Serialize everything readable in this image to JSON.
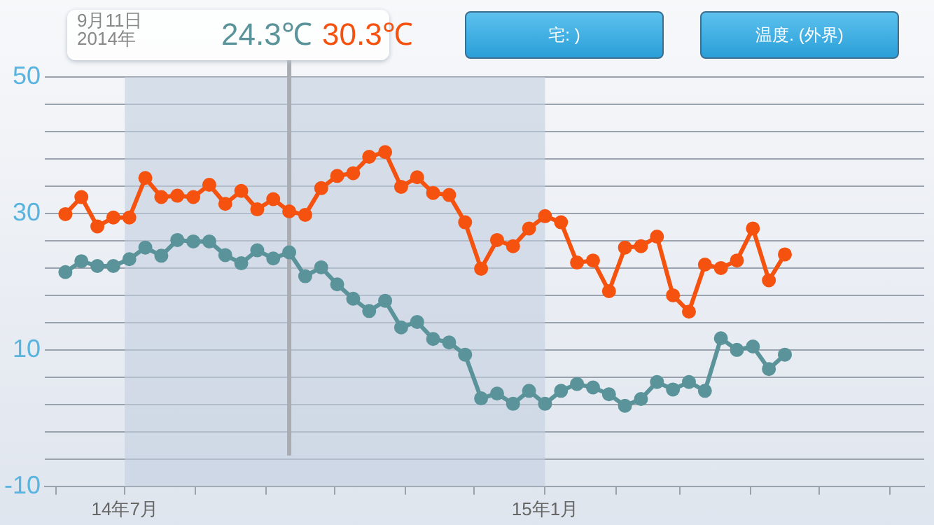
{
  "chart_data": {
    "type": "line",
    "x": [
      "2014-06-05",
      "2014-06-12",
      "2014-06-19",
      "2014-06-26",
      "2014-07-03",
      "2014-07-10",
      "2014-07-17",
      "2014-07-24",
      "2014-07-31",
      "2014-08-07",
      "2014-08-14",
      "2014-08-21",
      "2014-08-28",
      "2014-09-04",
      "2014-09-11",
      "2014-09-18",
      "2014-09-25",
      "2014-10-02",
      "2014-10-09",
      "2014-10-16",
      "2014-10-23",
      "2014-10-30",
      "2014-11-06",
      "2014-11-13",
      "2014-11-20",
      "2014-11-27",
      "2014-12-04",
      "2014-12-11",
      "2014-12-18",
      "2014-12-25",
      "2015-01-01",
      "2015-01-08",
      "2015-01-15",
      "2015-01-22",
      "2015-01-29",
      "2015-02-05",
      "2015-02-12",
      "2015-02-19",
      "2015-02-26",
      "2015-03-05",
      "2015-03-12",
      "2015-03-19",
      "2015-03-26",
      "2015-04-02",
      "2015-04-09",
      "2015-04-16"
    ],
    "series": [
      {
        "color": "#5a9399",
        "values": [
          21.4,
          23.0,
          22.3,
          22.3,
          23.3,
          25.0,
          23.8,
          26.1,
          25.9,
          25.9,
          23.9,
          22.7,
          24.6,
          23.4,
          24.3,
          20.8,
          22.1,
          19.6,
          17.5,
          15.7,
          17.2,
          13.3,
          14.1,
          11.6,
          11.1,
          9.3,
          2.9,
          3.6,
          2.1,
          4.0,
          2.1,
          4.0,
          5.0,
          4.5,
          3.5,
          1.8,
          2.8,
          5.3,
          4.2,
          5.3,
          4.0,
          11.7,
          10.0,
          10.5,
          7.2,
          9.3
        ]
      },
      {
        "color": "#f5520f",
        "values": [
          29.9,
          32.4,
          28.1,
          29.4,
          29.4,
          35.2,
          32.4,
          32.6,
          32.4,
          34.2,
          31.4,
          33.3,
          30.6,
          32.1,
          30.3,
          29.8,
          33.7,
          35.5,
          35.9,
          38.3,
          39.0,
          33.9,
          35.3,
          33.0,
          32.7,
          28.7,
          21.9,
          26.1,
          25.2,
          27.8,
          29.6,
          28.7,
          22.8,
          23.1,
          18.6,
          25.0,
          25.2,
          26.6,
          18.0,
          15.6,
          22.5,
          22.0,
          23.1,
          27.8,
          20.2,
          24.0
        ]
      }
    ],
    "xlim": [
      "2014-05-27",
      "2015-06-16"
    ],
    "xticks": [
      {
        "value": "2014-06-01",
        "label": null
      },
      {
        "value": "2014-07-01",
        "label": "14年7月"
      },
      {
        "value": "2014-08-01",
        "label": null
      },
      {
        "value": "2014-09-01",
        "label": null
      },
      {
        "value": "2014-10-01",
        "label": null
      },
      {
        "value": "2014-11-01",
        "label": null
      },
      {
        "value": "2014-12-01",
        "label": null
      },
      {
        "value": "2015-01-01",
        "label": "15年1月"
      },
      {
        "value": "2015-02-01",
        "label": null
      },
      {
        "value": "2015-03-01",
        "label": null
      },
      {
        "value": "2015-04-01",
        "label": null
      },
      {
        "value": "2015-05-01",
        "label": null
      },
      {
        "value": "2015-06-01",
        "label": null
      }
    ],
    "ylim": [
      -10,
      50
    ],
    "yticks": [
      -10,
      {
        "value": -6,
        "label": null
      },
      {
        "value": -2,
        "label": null
      },
      {
        "value": 2,
        "label": null
      },
      {
        "value": 6,
        "label": null
      },
      10,
      {
        "value": 14,
        "label": null
      },
      {
        "value": 18,
        "label": null
      },
      {
        "value": 22,
        "label": null
      },
      {
        "value": 26,
        "label": null
      },
      30,
      {
        "value": 34,
        "label": null
      },
      {
        "value": 38,
        "label": null
      },
      {
        "value": 42,
        "label": null
      },
      {
        "value": 46,
        "label": null
      },
      50
    ],
    "grid": "y",
    "legend": false,
    "marker": "circle",
    "line_style": "solid",
    "bands": [
      {
        "axis": "x",
        "from": "2014-07-01",
        "to": "2015-01-01",
        "color": "#c3cfdf"
      }
    ],
    "ref_lines": [
      {
        "axis": "x",
        "value": "2014-09-11",
        "color": "#a9adb2"
      }
    ],
    "annotations": [
      "9月11日",
      "2014年",
      "24.3℃",
      "30.3℃",
      "宅: )",
      "温度. (外界)"
    ]
  }
}
